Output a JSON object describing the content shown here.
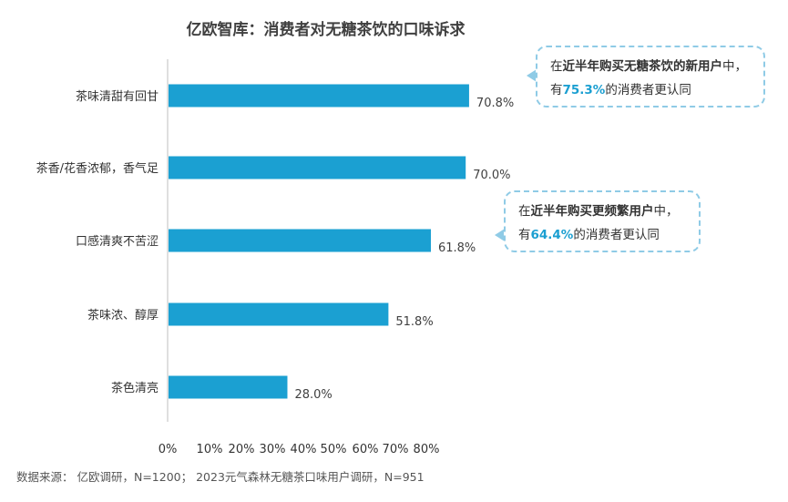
{
  "title": "亿欧智库：消费者对无糖茶饮的口味诉求",
  "source": "数据来源： 亿欧调研，N=1200； 2023元气森林无糖茶口味用户调研，N=951",
  "colors": {
    "bar": "#1ba0d2",
    "axis": "#bfbfbf",
    "accent": "#1b9fd1",
    "callout_border": "#8fcbe6"
  },
  "chart_data": {
    "type": "bar",
    "orientation": "horizontal",
    "categories": [
      "茶味清甜有回甘",
      "茶香/花香浓郁，香气足",
      "口感清爽不苦涩",
      "茶味浓、醇厚",
      "茶色清亮"
    ],
    "values": [
      70.8,
      70.0,
      61.8,
      51.8,
      28.0
    ],
    "value_labels": [
      "70.8%",
      "70.0%",
      "61.8%",
      "51.8%",
      "28.0%"
    ],
    "x_ticks": [
      "0%",
      "10%",
      "20%",
      "30%",
      "40%",
      "50%",
      "60%",
      "70%",
      "80%"
    ],
    "xlim": [
      0,
      100
    ],
    "grid": false
  },
  "callouts": [
    {
      "line1_pre": "在",
      "line1_bold": "近半年购买无糖茶饮的新用户",
      "line1_post": "中，",
      "line2_pre": "有",
      "line2_pct": "75.3%",
      "line2_post": "的消费者更认同"
    },
    {
      "line1_pre": "在",
      "line1_bold": "近半年购买更频繁用户",
      "line1_post": "中，",
      "line2_pre": "有",
      "line2_pct": "64.4%",
      "line2_post": "的消费者更认同"
    }
  ]
}
